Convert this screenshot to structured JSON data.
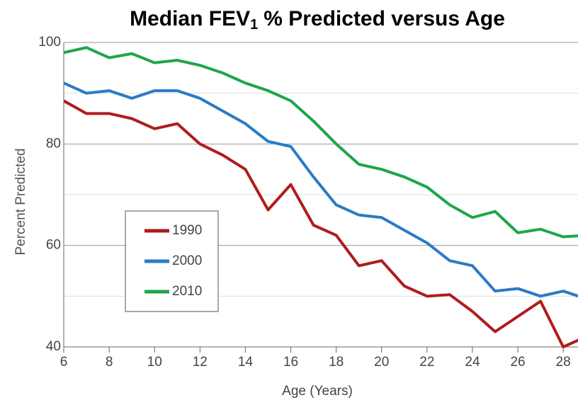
{
  "chart_data": {
    "type": "line",
    "title": {
      "text": "Median FEV",
      "subscript": "1",
      "rest": "% Predicted versus Age"
    },
    "xlabel": "Age (Years)",
    "ylabel": "Percent Predicted",
    "x": [
      6,
      7,
      8,
      9,
      10,
      11,
      12,
      13,
      14,
      15,
      16,
      17,
      18,
      19,
      20,
      21,
      22,
      23,
      24,
      25,
      26,
      27,
      28,
      29
    ],
    "series": [
      {
        "name": "1990",
        "color": "#b01c1c",
        "values": [
          88.5,
          86,
          86,
          85,
          83,
          84,
          80,
          77.8,
          75,
          67,
          72,
          64,
          62,
          56,
          57,
          52,
          50,
          50.3,
          47,
          43,
          46,
          49,
          40,
          42
        ]
      },
      {
        "name": "2000",
        "color": "#2b7bc4",
        "values": [
          92,
          90,
          90.5,
          89,
          90.5,
          90.5,
          89,
          86.5,
          84,
          80.5,
          79.5,
          73.5,
          68,
          66,
          65.5,
          63,
          60.5,
          57,
          56,
          51,
          51.5,
          50,
          51,
          49.5
        ]
      },
      {
        "name": "2010",
        "color": "#1fa64a",
        "values": [
          98,
          99,
          97,
          97.8,
          96,
          96.5,
          95.5,
          94,
          92,
          90.5,
          88.5,
          84.5,
          80,
          76,
          75,
          73.5,
          71.5,
          68,
          65.5,
          66.7,
          62.5,
          63.2,
          61.7,
          62
        ]
      }
    ],
    "xlim": [
      6,
      28.65
    ],
    "xticks": [
      6,
      8,
      10,
      12,
      14,
      16,
      18,
      20,
      22,
      24,
      26,
      28
    ],
    "ylim": [
      40,
      100
    ],
    "yticks": [
      40,
      60,
      80,
      100
    ],
    "yminor": [
      50,
      70,
      90
    ],
    "grid": true,
    "legend": "lower left"
  }
}
